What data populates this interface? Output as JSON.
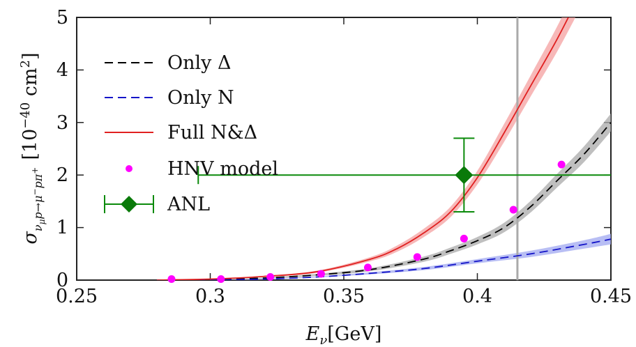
{
  "chart_data": {
    "type": "line",
    "xlabel": "E_ν[GeV]",
    "ylabel": "σ_{νμ p→μ⁻ p π⁺} [10⁻⁴⁰ cm²]",
    "xlim": [
      0.25,
      0.45
    ],
    "ylim": [
      0,
      5
    ],
    "x_ticks": [
      "0.25",
      "0.3",
      "0.35",
      "0.4",
      "0.45"
    ],
    "y_ticks": [
      "0",
      "1",
      "2",
      "3",
      "4",
      "5"
    ],
    "vertical_line_x": 0.415,
    "legend_placement": "top-left",
    "series": [
      {
        "name": "Only Δ",
        "style": "black-dashed",
        "color": "#000000",
        "band_color": "#a9a9a9",
        "x": [
          0.28,
          0.3,
          0.32,
          0.34,
          0.36,
          0.38,
          0.39,
          0.4,
          0.41,
          0.42,
          0.43,
          0.44,
          0.45
        ],
        "y": [
          0.0,
          0.01,
          0.04,
          0.1,
          0.2,
          0.4,
          0.56,
          0.75,
          1.0,
          1.4,
          1.9,
          2.4,
          3.0
        ],
        "band": [
          0.0,
          0.0,
          0.01,
          0.02,
          0.03,
          0.05,
          0.06,
          0.07,
          0.09,
          0.11,
          0.13,
          0.15,
          0.17
        ]
      },
      {
        "name": "Only N",
        "style": "blue-dashed",
        "color": "#1414c8",
        "band_color": "#a0a8f0",
        "x": [
          0.28,
          0.3,
          0.32,
          0.34,
          0.36,
          0.38,
          0.4,
          0.42,
          0.44,
          0.45
        ],
        "y": [
          0.0,
          0.0,
          0.02,
          0.06,
          0.13,
          0.22,
          0.36,
          0.5,
          0.68,
          0.78
        ],
        "band": [
          0.0,
          0.0,
          0.01,
          0.01,
          0.02,
          0.03,
          0.04,
          0.06,
          0.08,
          0.1
        ]
      },
      {
        "name": "Full N&Δ",
        "style": "red-solid",
        "color": "#e02020",
        "band_color": "#f4a0a0",
        "x": [
          0.28,
          0.3,
          0.32,
          0.34,
          0.36,
          0.37,
          0.38,
          0.39,
          0.4,
          0.41,
          0.42,
          0.43,
          0.44
        ],
        "y": [
          0.0,
          0.02,
          0.07,
          0.16,
          0.4,
          0.6,
          0.9,
          1.3,
          1.95,
          2.8,
          3.7,
          4.6,
          5.6
        ],
        "band": [
          0.0,
          0.0,
          0.01,
          0.02,
          0.04,
          0.06,
          0.08,
          0.1,
          0.13,
          0.17,
          0.2,
          0.24,
          0.28
        ]
      },
      {
        "name": "HNV model",
        "style": "magenta-points",
        "color": "#ff00ff",
        "x": [
          0.2855,
          0.304,
          0.3225,
          0.3415,
          0.359,
          0.3775,
          0.395,
          0.4135,
          0.4315
        ],
        "y": [
          0.02,
          0.02,
          0.06,
          0.12,
          0.24,
          0.44,
          0.79,
          1.34,
          2.2
        ]
      },
      {
        "name": "ANL",
        "style": "green-diamond-errorbar",
        "color": "#0a8a0a",
        "x": [
          0.395
        ],
        "y": [
          2.0
        ],
        "x_err": [
          [
            0.2955,
            0.45
          ]
        ],
        "y_err": [
          [
            1.3,
            2.7
          ]
        ]
      }
    ]
  }
}
